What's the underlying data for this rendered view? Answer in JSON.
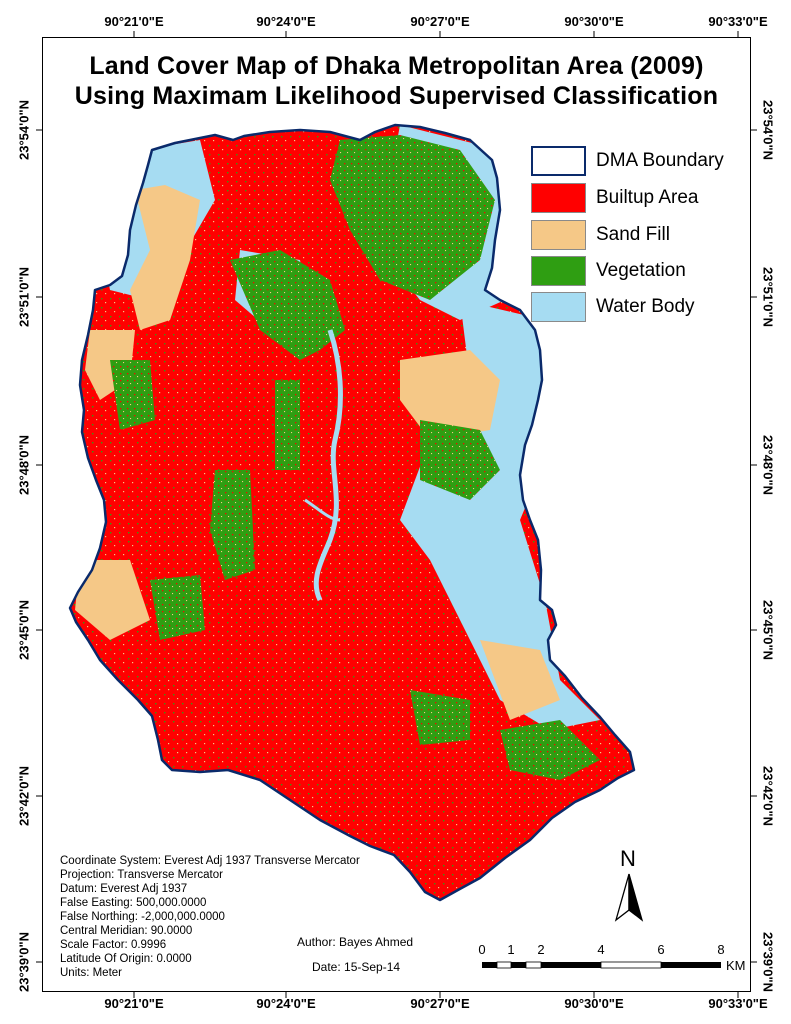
{
  "title": {
    "line1": "Land Cover Map of Dhaka Metropolitan Area (2009)",
    "line2": "Using Maximam Likelihood Supervised Classification"
  },
  "graticule": {
    "longitude_labels": [
      "90°21'0\"E",
      "90°24'0\"E",
      "90°27'0\"E",
      "90°30'0\"E",
      "90°33'0\"E"
    ],
    "latitude_labels": [
      "23°54'0\"N",
      "23°51'0\"N",
      "23°48'0\"N",
      "23°45'0\"N",
      "23°42'0\"N",
      "23°39'0\"N"
    ]
  },
  "legend": {
    "items": [
      {
        "label": "DMA Boundary",
        "fill": "#ffffff",
        "border": "#0a2a6b"
      },
      {
        "label": "Builtup Area",
        "fill": "#ff0000",
        "border": "#8a8a8a"
      },
      {
        "label": "Sand Fill",
        "fill": "#f5c887",
        "border": "#8a8a8a"
      },
      {
        "label": "Vegetation",
        "fill": "#2f9e12",
        "border": "#8a8a8a"
      },
      {
        "label": "Water Body",
        "fill": "#a6dcf2",
        "border": "#8a8a8a"
      }
    ]
  },
  "colors": {
    "boundary": "#0a2a6b",
    "builtup": "#ff0000",
    "sand": "#f5c887",
    "vegetation": "#2f9e12",
    "water": "#a6dcf2"
  },
  "projection_info": [
    "Coordinate System: Everest Adj 1937 Transverse Mercator",
    "Projection: Transverse Mercator",
    "Datum: Everest Adj 1937",
    "False Easting: 500,000.0000",
    "False Northing: -2,000,000.0000",
    "Central Meridian: 90.0000",
    "Scale Factor: 0.9996",
    "Latitude Of Origin: 0.0000",
    "Units: Meter"
  ],
  "credits": {
    "author": "Author: Bayes Ahmed",
    "date": "Date: 15-Sep-14"
  },
  "north_arrow": {
    "label": "N",
    "icon": "north-arrow-icon"
  },
  "scale_bar": {
    "ticks": [
      "0",
      "1",
      "2",
      "4",
      "6",
      "8"
    ],
    "unit": "KM"
  }
}
